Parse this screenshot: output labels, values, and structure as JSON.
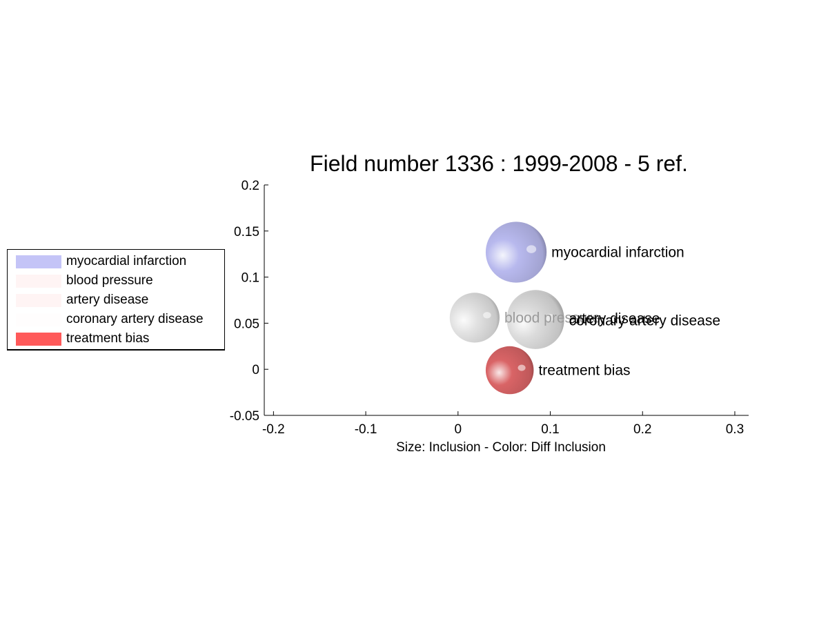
{
  "chart_data": {
    "type": "scatter",
    "title": "Field number 1336 : 1999-2008  - 5 ref.",
    "xlabel": "Size: Inclusion - Color: Diff Inclusion",
    "ylabel": "",
    "xlim": [
      -0.21,
      0.315
    ],
    "ylim": [
      -0.05,
      0.2
    ],
    "xticks": [
      -0.2,
      -0.1,
      0,
      0.1,
      0.2,
      0.3
    ],
    "xtick_labels": [
      "-0.2",
      "-0.1",
      "0",
      "0.1",
      "0.2",
      "0.3"
    ],
    "yticks": [
      -0.05,
      0,
      0.05,
      0.1,
      0.15,
      0.2
    ],
    "ytick_labels": [
      "-0.05",
      "0",
      "0.05",
      "0.1",
      "0.15",
      "0.2"
    ],
    "grid": false,
    "legend_position": "left",
    "points": [
      {
        "label": "myocardial infarction",
        "x": 0.063,
        "y": 0.127,
        "size": 0.033,
        "color": "#b8b9ee",
        "label_color": "#000000"
      },
      {
        "label": "blood pressure",
        "x": 0.018,
        "y": 0.056,
        "size": 0.027,
        "color": "#e2e2e2",
        "label_color": "#9a9a9a"
      },
      {
        "label": "artery disease",
        "x": 0.084,
        "y": 0.055,
        "size": 0.031,
        "color": "#dcdcdc",
        "label_color": "#000000"
      },
      {
        "label": "coronary artery disease",
        "x": 0.084,
        "y": 0.053,
        "size": 0.031,
        "color": "#dcdcdc",
        "label_color": "#000000"
      },
      {
        "label": "treatment bias",
        "x": 0.056,
        "y": -0.001,
        "size": 0.026,
        "color": "#d96466",
        "label_color": "#000000"
      }
    ],
    "legend": [
      {
        "label": "myocardial infarction",
        "color": "#c4c4f7"
      },
      {
        "label": "blood pressure",
        "color": "#fff4f4"
      },
      {
        "label": "artery disease",
        "color": "#fff4f4"
      },
      {
        "label": "coronary artery disease",
        "color": "#fffdfd"
      },
      {
        "label": "treatment bias",
        "color": "#ff5a5a"
      }
    ]
  }
}
